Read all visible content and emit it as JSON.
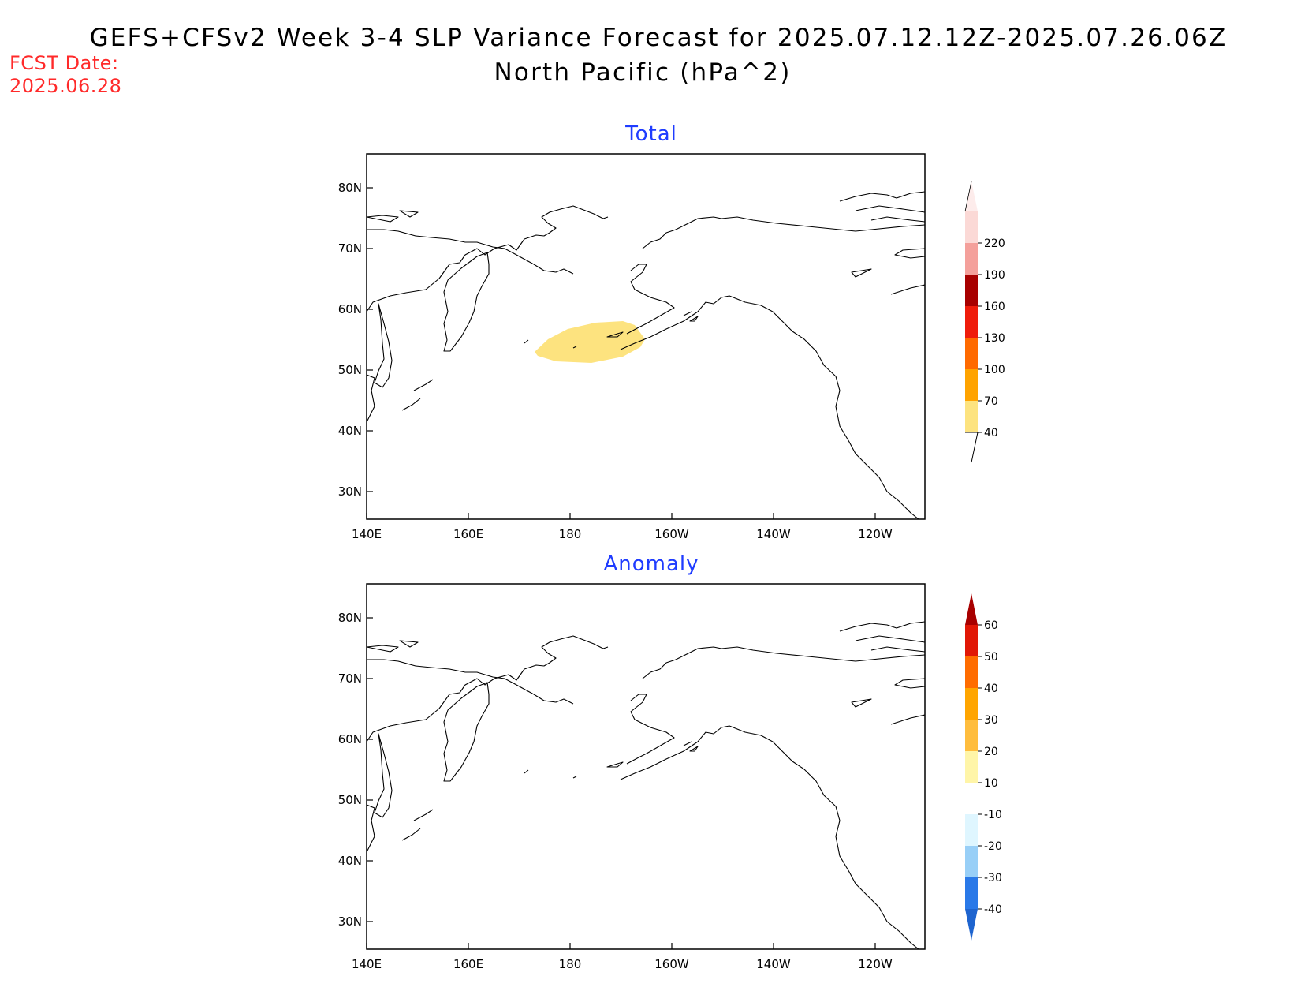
{
  "header": {
    "fcst_label": "FCST Date:",
    "fcst_date": "2025.06.28",
    "title_line1": "GEFS+CFSv2 Week 3-4 SLP Variance Forecast for 2025.07.12.12Z-2025.07.26.06Z",
    "title_line2": "North Pacific (hPa^2)"
  },
  "axes": {
    "lon_ticks": [
      "140E",
      "160E",
      "180",
      "160W",
      "140W",
      "120W"
    ],
    "lat_ticks": [
      "30N",
      "40N",
      "50N",
      "60N",
      "70N",
      "80N"
    ]
  },
  "panels": [
    {
      "title": "Total",
      "colorbar": {
        "labels": [
          "40",
          "70",
          "100",
          "130",
          "160",
          "190",
          "220"
        ],
        "colors": [
          "#fde37f",
          "#ffa300",
          "#ff6a00",
          "#ef1c0b",
          "#a80000",
          "#f4a09b",
          "#fbd9d6"
        ],
        "below_color": "#ffffff",
        "above_color": "#fdeceb"
      },
      "shaded_region": {
        "color": "#fde37f",
        "range_hpa2": "40-70",
        "location": "central North Pacific near the Aleutians"
      }
    },
    {
      "title": "Anomaly",
      "colorbar": {
        "labels": [
          "-40",
          "-30",
          "-20",
          "-10",
          "10",
          "20",
          "30",
          "40",
          "50",
          "60"
        ],
        "colors": [
          "#2a79e8",
          "#98cff7",
          "#dff6ff",
          "#ffffff",
          "#fff5a8",
          "#ffbd3d",
          "#ffa500",
          "#ff6c00",
          "#e11706"
        ],
        "below_color": "#1e64cf",
        "above_color": "#a80000"
      }
    }
  ]
}
